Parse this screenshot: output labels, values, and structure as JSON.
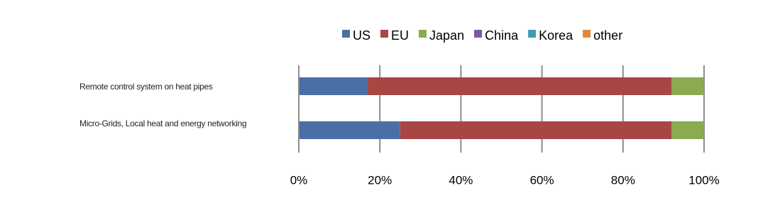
{
  "chart_data": {
    "type": "stacked-bar-horizontal",
    "categories": [
      "Remote control system on heat pipes",
      "Micro-Grids, Local heat and energy networking"
    ],
    "series": [
      {
        "name": "US",
        "color": "#4a6fa5",
        "values": [
          17,
          25
        ]
      },
      {
        "name": "EU",
        "color": "#a84644",
        "values": [
          75,
          67
        ]
      },
      {
        "name": "Japan",
        "color": "#8aab4e",
        "values": [
          8,
          8
        ]
      },
      {
        "name": "China",
        "color": "#7a5c99",
        "values": [
          0,
          0
        ]
      },
      {
        "name": "Korea",
        "color": "#3e9db3",
        "values": [
          0,
          0
        ]
      },
      {
        "name": "other",
        "color": "#e0873a",
        "values": [
          0,
          0
        ]
      }
    ],
    "xlim": [
      0,
      100
    ],
    "xticks": [
      {
        "value": 0,
        "label": "0%"
      },
      {
        "value": 20,
        "label": "20%"
      },
      {
        "value": 40,
        "label": "40%"
      },
      {
        "value": 60,
        "label": "60%"
      },
      {
        "value": 80,
        "label": "80%"
      },
      {
        "value": 100,
        "label": "100%"
      }
    ],
    "grid": true,
    "legend": "top"
  }
}
